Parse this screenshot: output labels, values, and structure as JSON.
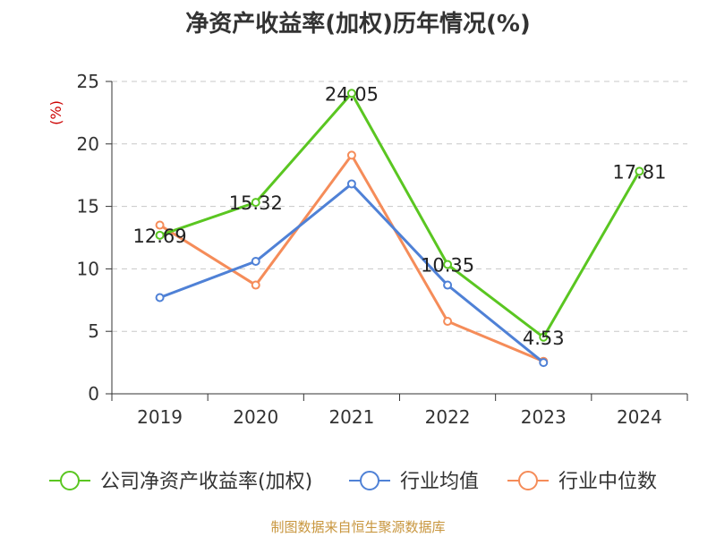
{
  "chart_data": {
    "type": "line",
    "title": "净资产收益率(加权)历年情况(%)",
    "ylabel": "(%)",
    "ylim": [
      0,
      25
    ],
    "yticks": [
      0,
      5,
      10,
      15,
      20,
      25
    ],
    "categories": [
      "2019",
      "2020",
      "2021",
      "2022",
      "2023",
      "2024"
    ],
    "series": [
      {
        "name": "公司净资产收益率(加权)",
        "color": "#5ac621",
        "values": [
          12.69,
          15.32,
          24.05,
          10.35,
          4.53,
          17.81
        ],
        "labels": [
          "12.69",
          "15.32",
          "24.05",
          "10.35",
          "4.53",
          "17.81"
        ]
      },
      {
        "name": "行业均值",
        "color": "#4f81d6",
        "values": [
          7.7,
          10.6,
          16.8,
          8.7,
          2.5,
          null
        ]
      },
      {
        "name": "行业中位数",
        "color": "#f58c59",
        "values": [
          13.5,
          8.7,
          19.1,
          5.8,
          2.6,
          null
        ]
      }
    ],
    "grid": true,
    "legend": "bottom"
  },
  "source": "制图数据来自恒生聚源数据库"
}
